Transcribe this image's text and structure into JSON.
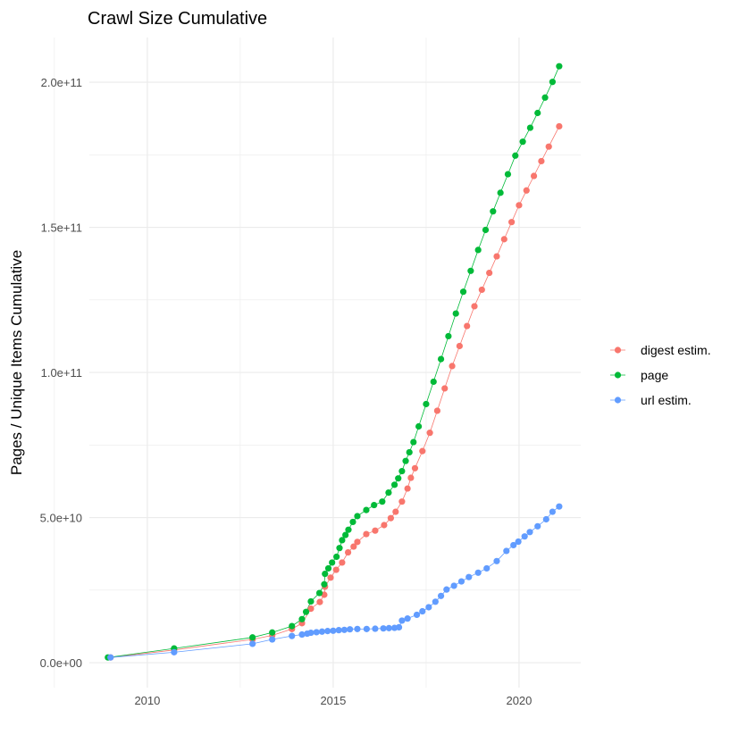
{
  "chart_data": {
    "type": "line",
    "title": "Crawl Size Cumulative",
    "xlabel": "",
    "ylabel": "Pages / Unique Items Cumulative",
    "xlim": [
      2008.44,
      2021.66
    ],
    "ylim": [
      -8600000000.0,
      215400000000.0
    ],
    "x_ticks": [
      2010,
      2015,
      2020
    ],
    "x_tick_labels": [
      "2010",
      "2015",
      "2020"
    ],
    "y_ticks": [
      0,
      50000000000.0,
      100000000000.0,
      150000000000.0,
      200000000000.0
    ],
    "y_tick_labels": [
      "0.0e+00",
      "5.0e+10",
      "1.0e+11",
      "1.5e+11",
      "2.0e+11"
    ],
    "grid": true,
    "legend_position": "right",
    "markers": "points connected by lines",
    "series": [
      {
        "name": "digest estim.",
        "color": "#F8766D",
        "points": [
          [
            2009.01,
            1800000000.0
          ],
          [
            2010.72,
            4400000000.0
          ],
          [
            2012.83,
            8000000000.0
          ],
          [
            2013.36,
            9400000000.0
          ],
          [
            2013.89,
            11600000000.0
          ],
          [
            2014.16,
            13600000000.0
          ],
          [
            2014.4,
            18600000000.0
          ],
          [
            2014.64,
            20900000000.0
          ],
          [
            2014.76,
            23400000000.0
          ],
          [
            2014.78,
            26200000000.0
          ],
          [
            2014.93,
            29300000000.0
          ],
          [
            2015.08,
            32000000000.0
          ],
          [
            2015.24,
            34500000000.0
          ],
          [
            2015.4,
            38000000000.0
          ],
          [
            2015.55,
            40000000000.0
          ],
          [
            2015.65,
            41600000000.0
          ],
          [
            2015.89,
            44300000000.0
          ],
          [
            2016.13,
            45500000000.0
          ],
          [
            2016.37,
            47400000000.0
          ],
          [
            2016.55,
            49800000000.0
          ],
          [
            2016.68,
            52000000000.0
          ],
          [
            2016.85,
            55500000000.0
          ],
          [
            2017.0,
            60000000000.0
          ],
          [
            2017.09,
            63700000000.0
          ],
          [
            2017.2,
            67000000000.0
          ],
          [
            2017.4,
            72900000000.0
          ],
          [
            2017.6,
            79200000000.0
          ],
          [
            2017.8,
            86800000000.0
          ],
          [
            2018.0,
            94500000000.0
          ],
          [
            2018.2,
            102200000000.0
          ],
          [
            2018.4,
            109100000000.0
          ],
          [
            2018.6,
            116000000000.0
          ],
          [
            2018.8,
            122800000000.0
          ],
          [
            2019.0,
            128500000000.0
          ],
          [
            2019.2,
            134300000000.0
          ],
          [
            2019.4,
            140000000000.0
          ],
          [
            2019.6,
            145900000000.0
          ],
          [
            2019.8,
            151800000000.0
          ],
          [
            2020.0,
            157600000000.0
          ],
          [
            2020.2,
            162700000000.0
          ],
          [
            2020.4,
            167700000000.0
          ],
          [
            2020.6,
            172800000000.0
          ],
          [
            2020.8,
            177800000000.0
          ],
          [
            2021.08,
            184800000000.0
          ]
        ]
      },
      {
        "name": "page",
        "color": "#00BA38",
        "points": [
          [
            2008.94,
            1800000000.0
          ],
          [
            2010.72,
            4900000000.0
          ],
          [
            2012.83,
            8700000000.0
          ],
          [
            2013.36,
            10400000000.0
          ],
          [
            2013.89,
            12600000000.0
          ],
          [
            2014.16,
            15000000000.0
          ],
          [
            2014.27,
            17500000000.0
          ],
          [
            2014.4,
            21100000000.0
          ],
          [
            2014.63,
            24000000000.0
          ],
          [
            2014.76,
            27000000000.0
          ],
          [
            2014.78,
            30600000000.0
          ],
          [
            2014.87,
            32500000000.0
          ],
          [
            2014.97,
            34500000000.0
          ],
          [
            2015.09,
            36500000000.0
          ],
          [
            2015.17,
            39500000000.0
          ],
          [
            2015.24,
            42200000000.0
          ],
          [
            2015.33,
            44000000000.0
          ],
          [
            2015.41,
            45800000000.0
          ],
          [
            2015.53,
            48500000000.0
          ],
          [
            2015.65,
            50500000000.0
          ],
          [
            2015.89,
            52600000000.0
          ],
          [
            2016.1,
            54300000000.0
          ],
          [
            2016.32,
            55500000000.0
          ],
          [
            2016.49,
            58600000000.0
          ],
          [
            2016.65,
            61300000000.0
          ],
          [
            2016.75,
            63500000000.0
          ],
          [
            2016.85,
            66000000000.0
          ],
          [
            2016.95,
            69500000000.0
          ],
          [
            2017.05,
            72500000000.0
          ],
          [
            2017.16,
            76000000000.0
          ],
          [
            2017.3,
            81400000000.0
          ],
          [
            2017.5,
            89100000000.0
          ],
          [
            2017.7,
            96800000000.0
          ],
          [
            2017.9,
            104600000000.0
          ],
          [
            2018.1,
            112500000000.0
          ],
          [
            2018.3,
            120300000000.0
          ],
          [
            2018.5,
            127800000000.0
          ],
          [
            2018.7,
            135000000000.0
          ],
          [
            2018.9,
            142200000000.0
          ],
          [
            2019.1,
            149100000000.0
          ],
          [
            2019.3,
            155500000000.0
          ],
          [
            2019.5,
            161900000000.0
          ],
          [
            2019.7,
            168300000000.0
          ],
          [
            2019.9,
            174700000000.0
          ],
          [
            2020.1,
            179500000000.0
          ],
          [
            2020.3,
            184300000000.0
          ],
          [
            2020.5,
            189400000000.0
          ],
          [
            2020.7,
            194700000000.0
          ],
          [
            2020.9,
            200100000000.0
          ],
          [
            2021.08,
            205500000000.0
          ]
        ]
      },
      {
        "name": "url estim.",
        "color": "#619CFF",
        "points": [
          [
            2009.01,
            1800000000.0
          ],
          [
            2010.72,
            3600000000.0
          ],
          [
            2012.83,
            6500000000.0
          ],
          [
            2013.36,
            8000000000.0
          ],
          [
            2013.89,
            9200000000.0
          ],
          [
            2014.16,
            9700000000.0
          ],
          [
            2014.3,
            10000000000.0
          ],
          [
            2014.4,
            10300000000.0
          ],
          [
            2014.55,
            10500000000.0
          ],
          [
            2014.7,
            10700000000.0
          ],
          [
            2014.85,
            10900000000.0
          ],
          [
            2015.0,
            11000000000.0
          ],
          [
            2015.15,
            11200000000.0
          ],
          [
            2015.3,
            11300000000.0
          ],
          [
            2015.45,
            11500000000.0
          ],
          [
            2015.65,
            11600000000.0
          ],
          [
            2015.9,
            11600000000.0
          ],
          [
            2016.13,
            11700000000.0
          ],
          [
            2016.35,
            11800000000.0
          ],
          [
            2016.5,
            11900000000.0
          ],
          [
            2016.65,
            12000000000.0
          ],
          [
            2016.77,
            12200000000.0
          ],
          [
            2016.85,
            14500000000.0
          ],
          [
            2017.0,
            15200000000.0
          ],
          [
            2017.25,
            16500000000.0
          ],
          [
            2017.4,
            17700000000.0
          ],
          [
            2017.57,
            19100000000.0
          ],
          [
            2017.75,
            21000000000.0
          ],
          [
            2017.9,
            23000000000.0
          ],
          [
            2018.05,
            25200000000.0
          ],
          [
            2018.25,
            26500000000.0
          ],
          [
            2018.45,
            28000000000.0
          ],
          [
            2018.65,
            29500000000.0
          ],
          [
            2018.9,
            31000000000.0
          ],
          [
            2019.13,
            32500000000.0
          ],
          [
            2019.4,
            35000000000.0
          ],
          [
            2019.66,
            38500000000.0
          ],
          [
            2019.85,
            40500000000.0
          ],
          [
            2019.98,
            41700000000.0
          ],
          [
            2020.15,
            43500000000.0
          ],
          [
            2020.29,
            45000000000.0
          ],
          [
            2020.5,
            47000000000.0
          ],
          [
            2020.73,
            49400000000.0
          ],
          [
            2020.9,
            52000000000.0
          ],
          [
            2021.08,
            53800000000.0
          ]
        ]
      }
    ]
  }
}
